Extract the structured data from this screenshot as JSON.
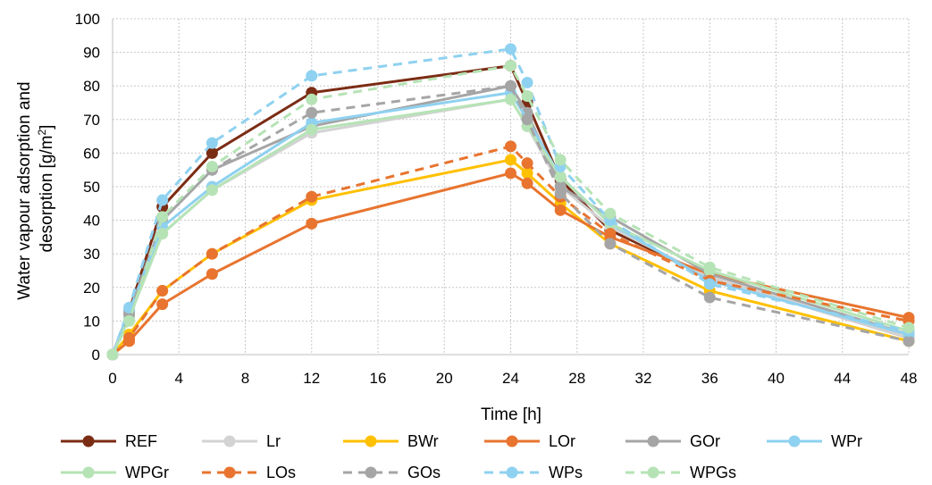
{
  "chart_data": {
    "type": "line",
    "xlabel": "Time [h]",
    "ylabel_line1": "Water vapour adsorption and",
    "ylabel_line2_prefix": "desorption [g/m",
    "ylabel_line2_sup": "2",
    "ylabel_line2_suffix": "]",
    "xlim": [
      0,
      48
    ],
    "ylim": [
      0,
      100
    ],
    "xticks": [
      0,
      4,
      8,
      12,
      16,
      20,
      24,
      28,
      32,
      36,
      40,
      44,
      48
    ],
    "yticks": [
      0,
      10,
      20,
      30,
      40,
      50,
      60,
      70,
      80,
      90,
      100
    ],
    "grid": true,
    "legend_position": "bottom",
    "x": [
      0,
      1,
      3,
      6,
      12,
      24,
      25,
      27,
      30,
      36,
      48
    ],
    "series": [
      {
        "name": "REF",
        "color": "#7B2C14",
        "dashed": false,
        "values": [
          0,
          13,
          44,
          60,
          78,
          86,
          75,
          52,
          37,
          23,
          5
        ]
      },
      {
        "name": "Lr",
        "color": "#D3D3D3",
        "dashed": false,
        "values": [
          0,
          11,
          36,
          49,
          66,
          76,
          68,
          50,
          38,
          23,
          5
        ]
      },
      {
        "name": "BWr",
        "color": "#FFC000",
        "dashed": false,
        "values": [
          0,
          6,
          19,
          30,
          46,
          58,
          54,
          45,
          33,
          19,
          4
        ]
      },
      {
        "name": "LOr",
        "color": "#E8742F",
        "dashed": false,
        "values": [
          0,
          4,
          15,
          24,
          39,
          54,
          51,
          43,
          35,
          24,
          11
        ]
      },
      {
        "name": "GOr",
        "color": "#A5A5A5",
        "dashed": false,
        "values": [
          0,
          12,
          40,
          55,
          68,
          80,
          72,
          50,
          41,
          24,
          6
        ]
      },
      {
        "name": "WPr",
        "color": "#8FD1F0",
        "dashed": false,
        "values": [
          0,
          13,
          38,
          50,
          69,
          78,
          70,
          53,
          39,
          22,
          6
        ]
      },
      {
        "name": "WPGr",
        "color": "#B6E3B6",
        "dashed": false,
        "values": [
          0,
          11,
          36,
          49,
          67,
          76,
          68,
          53,
          39,
          25,
          7
        ]
      },
      {
        "name": "LOs",
        "color": "#E8742F",
        "dashed": true,
        "values": [
          0,
          5,
          19,
          30,
          47,
          62,
          57,
          47,
          36,
          22,
          10
        ]
      },
      {
        "name": "GOs",
        "color": "#A5A5A5",
        "dashed": true,
        "values": [
          0,
          12,
          41,
          55,
          72,
          80,
          70,
          48,
          33,
          17,
          4
        ]
      },
      {
        "name": "WPs",
        "color": "#8FD1F0",
        "dashed": true,
        "values": [
          0,
          14,
          46,
          63,
          83,
          91,
          81,
          56,
          40,
          21,
          7
        ]
      },
      {
        "name": "WPGs",
        "color": "#B6E3B6",
        "dashed": true,
        "values": [
          0,
          10,
          41,
          56,
          76,
          86,
          77,
          58,
          42,
          26,
          8
        ]
      }
    ]
  }
}
